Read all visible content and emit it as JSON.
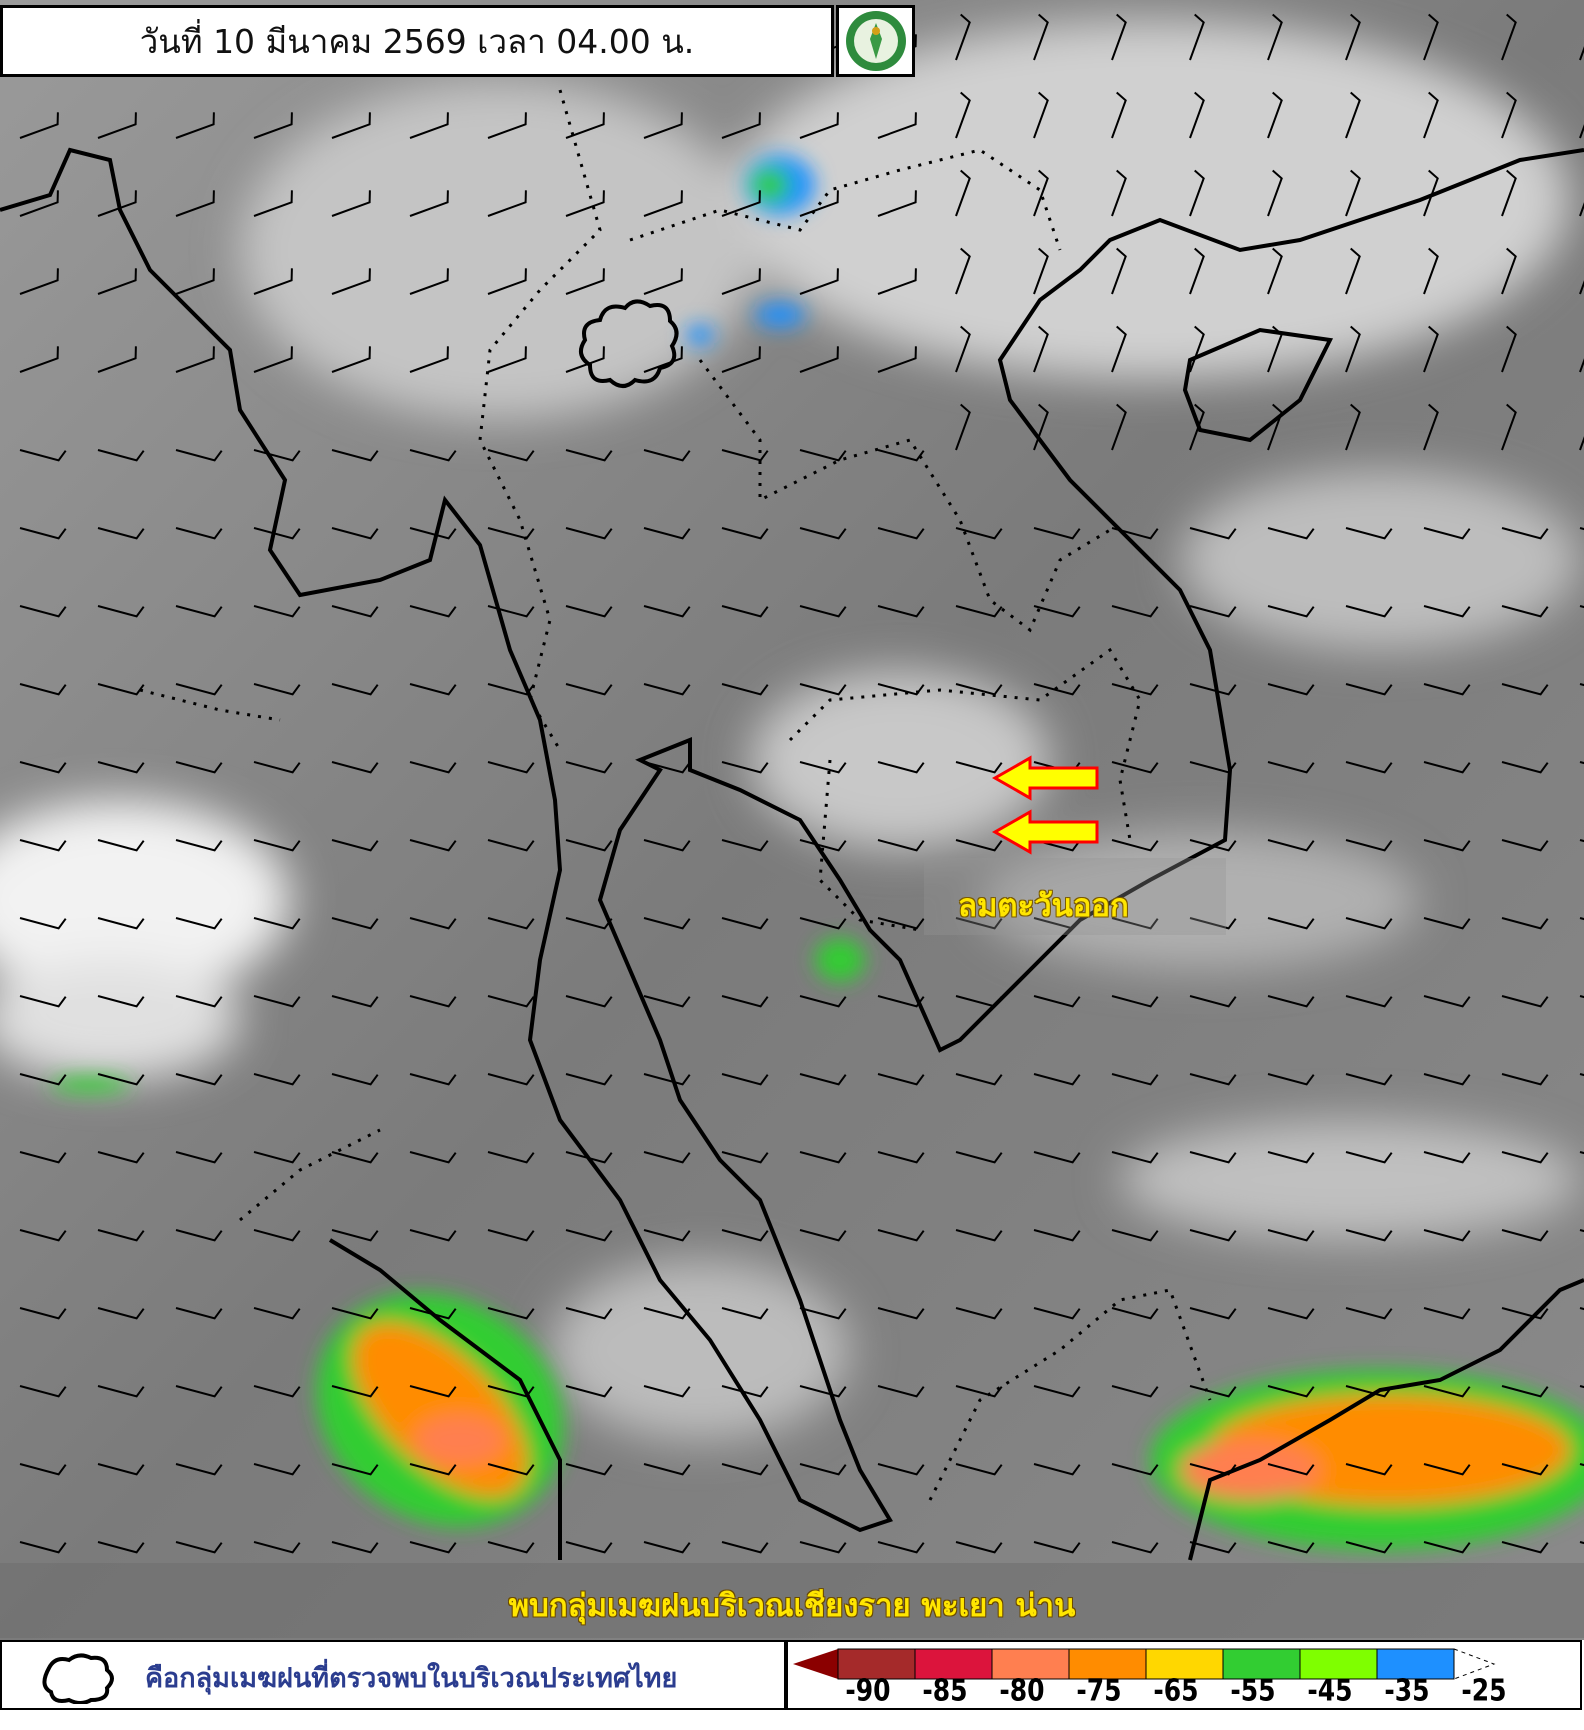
{
  "header": {
    "title": "วันที่ 10 มีนาคม 2569 เวลา 04.00 น.",
    "logo_icon": "thai-meteorological-department-logo"
  },
  "map": {
    "annotation_wind": "ลมตะวันออก",
    "arrow_color": "#ffff00",
    "arrow_outline": "#ff0000",
    "caption": "พบกลุ่มเมฆฝนบริเวณเชียงราย พะเยา น่าน"
  },
  "legend": {
    "cloud_icon": "rain-cloud-outline-icon",
    "cloud_text": "คือกลุ่มเมฆฝนที่ตรวจพบในบริเวณประเทศไทย",
    "scale": {
      "labels": [
        "-90",
        "-85",
        "-80",
        "-75",
        "-65",
        "-55",
        "-45",
        "-35",
        "-25"
      ],
      "colors": [
        "#8b0000",
        "#a52a2a",
        "#dc143c",
        "#ff7f50",
        "#ff8c00",
        "#ffd700",
        "#32cd32",
        "#7fff00",
        "#1e90ff"
      ]
    }
  }
}
